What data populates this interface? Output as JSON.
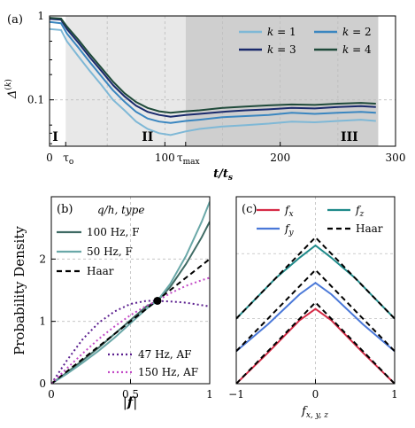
{
  "chart_data": [
    {
      "panel": "(a)",
      "type": "line",
      "xlabel": "t/t_s",
      "ylabel": "Δ^(k)",
      "xlim": [
        0,
        300
      ],
      "ylim_log": [
        0.028,
        1.0
      ],
      "y_scale": "log",
      "x_ticks": [
        {
          "v": 0,
          "label": "0"
        },
        {
          "v": 100,
          "label": "100"
        },
        {
          "v": 200,
          "label": "200"
        },
        {
          "v": 300,
          "label": "300"
        }
      ],
      "x_tick_special": [
        {
          "v": 14,
          "label": "τ",
          "sub": "o"
        },
        {
          "v": 118,
          "label": "τ",
          "sub": "max"
        }
      ],
      "y_ticks": [
        {
          "v": 1,
          "label": "1"
        },
        {
          "v": 0.1,
          "label": "0.1"
        }
      ],
      "regions": [
        {
          "label": "I",
          "x0": 0,
          "x1": 14,
          "shade": "#ffffff",
          "label_x": 5
        },
        {
          "label": "II",
          "x0": 14,
          "x1": 118,
          "shade": "#e8e8e8",
          "label_x": 85
        },
        {
          "label": "III",
          "x0": 118,
          "x1": 285,
          "shade": "#cfcfcf",
          "label_x": 260
        }
      ],
      "legend_position": "top-right",
      "series": [
        {
          "name": "k = 1",
          "color": "#7fb8d6",
          "x": [
            0,
            10,
            15,
            25,
            35,
            45,
            55,
            65,
            75,
            85,
            95,
            105,
            118,
            130,
            150,
            170,
            190,
            210,
            230,
            250,
            270,
            283
          ],
          "y": [
            0.7,
            0.68,
            0.5,
            0.33,
            0.22,
            0.15,
            0.1,
            0.075,
            0.055,
            0.045,
            0.04,
            0.038,
            0.042,
            0.045,
            0.048,
            0.05,
            0.052,
            0.055,
            0.054,
            0.056,
            0.058,
            0.056
          ]
        },
        {
          "name": "k = 2",
          "color": "#3a86c0",
          "x": [
            0,
            10,
            15,
            25,
            35,
            45,
            55,
            65,
            75,
            85,
            95,
            105,
            118,
            130,
            150,
            170,
            190,
            210,
            230,
            250,
            270,
            283
          ],
          "y": [
            0.85,
            0.82,
            0.62,
            0.42,
            0.28,
            0.19,
            0.13,
            0.095,
            0.072,
            0.06,
            0.055,
            0.053,
            0.056,
            0.058,
            0.062,
            0.064,
            0.066,
            0.07,
            0.068,
            0.07,
            0.072,
            0.07
          ]
        },
        {
          "name": "k = 3",
          "color": "#1a2a6c",
          "x": [
            0,
            10,
            15,
            25,
            35,
            45,
            55,
            65,
            75,
            85,
            95,
            105,
            118,
            130,
            150,
            170,
            190,
            210,
            230,
            250,
            270,
            283
          ],
          "y": [
            0.92,
            0.9,
            0.7,
            0.48,
            0.32,
            0.22,
            0.15,
            0.11,
            0.085,
            0.072,
            0.066,
            0.063,
            0.066,
            0.068,
            0.072,
            0.075,
            0.077,
            0.08,
            0.079,
            0.082,
            0.084,
            0.082
          ]
        },
        {
          "name": "k = 4",
          "color": "#1f4a3a",
          "x": [
            0,
            10,
            15,
            25,
            35,
            45,
            55,
            65,
            75,
            85,
            95,
            105,
            118,
            130,
            150,
            170,
            190,
            210,
            230,
            250,
            270,
            283
          ],
          "y": [
            0.95,
            0.93,
            0.75,
            0.52,
            0.35,
            0.24,
            0.165,
            0.12,
            0.094,
            0.08,
            0.073,
            0.07,
            0.073,
            0.075,
            0.08,
            0.083,
            0.086,
            0.088,
            0.087,
            0.09,
            0.092,
            0.09
          ]
        }
      ]
    },
    {
      "panel": "(b)",
      "type": "line",
      "xlabel": "|f|",
      "ylabel": "Probability Density",
      "xlim": [
        0,
        1
      ],
      "ylim": [
        0,
        3
      ],
      "x_ticks": [
        {
          "v": 0,
          "label": "0"
        },
        {
          "v": 0.5,
          "label": "0.5"
        },
        {
          "v": 1,
          "label": "1"
        }
      ],
      "y_ticks": [
        {
          "v": 0,
          "label": "0"
        },
        {
          "v": 1,
          "label": "1"
        },
        {
          "v": 2,
          "label": "2"
        }
      ],
      "legend_title": "q/h, type",
      "legend_position": "top-left",
      "legend_bottom_position": "bottom-left",
      "marker_point": {
        "x": 0.67,
        "y": 1.33,
        "color": "#000000"
      },
      "series": [
        {
          "name": "100 Hz, F",
          "color": "#3f6b64",
          "style": "solid",
          "x": [
            0,
            0.1,
            0.2,
            0.3,
            0.4,
            0.5,
            0.6,
            0.67,
            0.75,
            0.85,
            0.95,
            1.0
          ],
          "y": [
            0,
            0.18,
            0.38,
            0.58,
            0.8,
            1.02,
            1.24,
            1.33,
            1.55,
            1.92,
            2.35,
            2.6
          ]
        },
        {
          "name": "50 Hz, F",
          "color": "#6aa8a8",
          "style": "solid",
          "x": [
            0,
            0.1,
            0.2,
            0.3,
            0.4,
            0.5,
            0.6,
            0.67,
            0.75,
            0.85,
            0.95,
            1.0
          ],
          "y": [
            0,
            0.16,
            0.34,
            0.53,
            0.74,
            0.97,
            1.2,
            1.33,
            1.6,
            2.05,
            2.6,
            2.92
          ]
        },
        {
          "name": "Haar",
          "color": "#000000",
          "style": "dashed",
          "x": [
            0,
            1.0
          ],
          "y": [
            0,
            2.0
          ]
        },
        {
          "name": "47 Hz, AF",
          "color": "#5b1f8f",
          "style": "dotted",
          "x": [
            0,
            0.1,
            0.2,
            0.3,
            0.4,
            0.5,
            0.6,
            0.67,
            0.75,
            0.85,
            0.95,
            1.0
          ],
          "y": [
            0,
            0.38,
            0.72,
            0.98,
            1.16,
            1.28,
            1.33,
            1.33,
            1.32,
            1.3,
            1.26,
            1.24
          ]
        },
        {
          "name": "150 Hz, AF",
          "color": "#c24ac6",
          "style": "dotted",
          "x": [
            0,
            0.1,
            0.2,
            0.3,
            0.4,
            0.5,
            0.6,
            0.67,
            0.75,
            0.85,
            0.95,
            1.0
          ],
          "y": [
            0,
            0.25,
            0.49,
            0.72,
            0.92,
            1.1,
            1.25,
            1.33,
            1.45,
            1.57,
            1.66,
            1.7
          ]
        }
      ]
    },
    {
      "panel": "(c)",
      "type": "line",
      "xlabel": "f_{x,y,z}",
      "xlim": [
        -1,
        1
      ],
      "x_ticks": [
        {
          "v": -1,
          "label": "−1"
        },
        {
          "v": 0,
          "label": "0"
        },
        {
          "v": 1,
          "label": "1"
        }
      ],
      "legend_position": "top",
      "series": [
        {
          "name": "f_x",
          "color": "#d62b46",
          "style": "solid",
          "x": [
            -1,
            -0.6,
            -0.2,
            0,
            0.2,
            0.6,
            1
          ],
          "y": [
            0,
            0.38,
            0.78,
            0.92,
            0.78,
            0.38,
            0
          ]
        },
        {
          "name": "f_y",
          "color": "#4a78d8",
          "style": "solid",
          "x": [
            -1,
            -0.6,
            -0.2,
            0,
            0.2,
            0.6,
            1
          ],
          "y": [
            0.4,
            0.73,
            1.1,
            1.24,
            1.1,
            0.73,
            0.4
          ]
        },
        {
          "name": "f_z",
          "color": "#1f8a8a",
          "style": "solid",
          "x": [
            -1,
            -0.8,
            -0.5,
            -0.2,
            0,
            0.2,
            0.5,
            0.8,
            1
          ],
          "y": [
            0.8,
            1.0,
            1.3,
            1.55,
            1.7,
            1.55,
            1.3,
            1.0,
            0.8
          ]
        },
        {
          "name": "Haar",
          "color": "#000000",
          "style": "dashed",
          "x": [
            -1,
            0,
            1
          ],
          "y": [
            0,
            1.0,
            0
          ]
        },
        {
          "name": "Haar_y",
          "legend": false,
          "color": "#000000",
          "style": "dashed",
          "x": [
            -1,
            0,
            1
          ],
          "y": [
            0.4,
            1.4,
            0.4
          ]
        },
        {
          "name": "Haar_z",
          "legend": false,
          "color": "#000000",
          "style": "dashed",
          "x": [
            -1,
            0,
            1
          ],
          "y": [
            0.8,
            1.8,
            0.8
          ]
        }
      ]
    }
  ]
}
